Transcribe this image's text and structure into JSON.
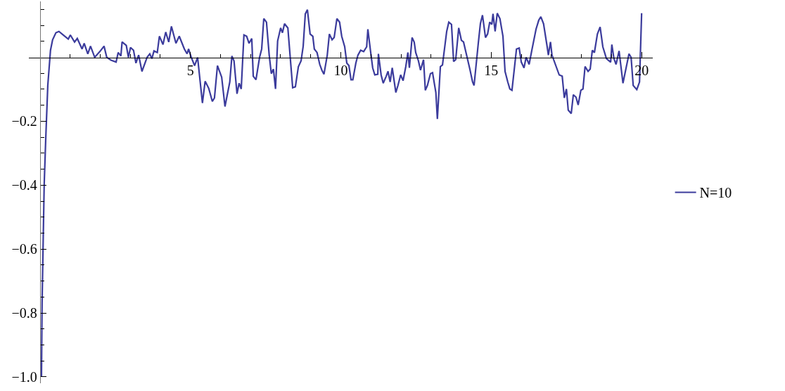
{
  "chart_data": {
    "type": "line",
    "legend": "right",
    "line_style": "solid",
    "marker": "none",
    "grid": false,
    "x": [
      0.05,
      0.07,
      0.14,
      0.19,
      0.26,
      0.35,
      0.42,
      0.53,
      0.63,
      0.77,
      0.94,
      1.01,
      1.15,
      1.24,
      1.4,
      1.47,
      1.59,
      1.68,
      1.82,
      1.99,
      2.13,
      2.22,
      2.36,
      2.53,
      2.6,
      2.69,
      2.73,
      2.87,
      2.94,
      3.01,
      3.11,
      3.19,
      3.28,
      3.39,
      3.56,
      3.65,
      3.72,
      3.79,
      3.9,
      3.97,
      4.09,
      4.18,
      4.28,
      4.37,
      4.52,
      4.63,
      4.8,
      4.89,
      4.94,
      5.03,
      5.14,
      5.24,
      5.4,
      5.49,
      5.61,
      5.73,
      5.8,
      5.9,
      6.04,
      6.15,
      6.31,
      6.38,
      6.45,
      6.55,
      6.62,
      6.69,
      6.78,
      6.87,
      6.95,
      7.04,
      7.09,
      7.18,
      7.3,
      7.37,
      7.44,
      7.53,
      7.62,
      7.69,
      7.76,
      7.83,
      7.9,
      8.0,
      8.06,
      8.13,
      8.24,
      8.4,
      8.49,
      8.59,
      8.68,
      8.75,
      8.82,
      8.89,
      8.98,
      9.07,
      9.12,
      9.21,
      9.3,
      9.37,
      9.44,
      9.55,
      9.62,
      9.71,
      9.78,
      9.87,
      9.96,
      10.03,
      10.13,
      10.2,
      10.27,
      10.34,
      10.4,
      10.5,
      10.57,
      10.66,
      10.76,
      10.86,
      10.9,
      10.99,
      11.06,
      11.13,
      11.23,
      11.25,
      11.34,
      11.41,
      11.51,
      11.57,
      11.64,
      11.71,
      11.83,
      11.9,
      11.99,
      12.07,
      12.16,
      12.23,
      12.28,
      12.37,
      12.44,
      12.49,
      12.58,
      12.65,
      12.75,
      12.81,
      12.88,
      12.98,
      13.05,
      13.16,
      13.21,
      13.31,
      13.38,
      13.52,
      13.59,
      13.68,
      13.75,
      13.82,
      13.92,
      14.01,
      14.08,
      14.29,
      14.38,
      14.43,
      14.57,
      14.64,
      14.71,
      14.81,
      14.88,
      14.95,
      15.02,
      15.06,
      15.13,
      15.2,
      15.29,
      15.39,
      15.46,
      15.55,
      15.62,
      15.69,
      15.84,
      15.93,
      16.0,
      16.09,
      16.16,
      16.26,
      16.35,
      16.49,
      16.58,
      16.65,
      16.74,
      16.86,
      16.9,
      16.97,
      17.02,
      17.26,
      17.36,
      17.43,
      17.5,
      17.56,
      17.66,
      17.73,
      17.82,
      17.89,
      17.98,
      18.05,
      18.12,
      18.22,
      18.29,
      18.36,
      18.43,
      18.53,
      18.62,
      18.71,
      18.83,
      18.97,
      19.01,
      19.08,
      19.15,
      19.25,
      19.38,
      19.58,
      19.65,
      19.72,
      19.84,
      19.93,
      20.0
    ],
    "series": [
      {
        "name": "N=10",
        "color": "#3b3b9c",
        "values": [
          -1.0,
          -0.77,
          -0.4,
          -0.26,
          -0.088,
          0.022,
          0.055,
          0.077,
          0.081,
          0.07,
          0.057,
          0.07,
          0.048,
          0.059,
          0.026,
          0.044,
          0.011,
          0.035,
          0,
          0.018,
          0.035,
          0,
          -0.009,
          -0.015,
          0.015,
          0.004,
          0.048,
          0.037,
          0,
          0.031,
          0.022,
          -0.018,
          0.007,
          -0.044,
          0,
          0.011,
          -0.004,
          0.02,
          0.015,
          0.066,
          0.04,
          0.079,
          0.048,
          0.097,
          0.044,
          0.066,
          0.026,
          0.011,
          0.026,
          0,
          -0.026,
          0,
          -0.143,
          -0.075,
          -0.097,
          -0.138,
          -0.127,
          -0.026,
          -0.062,
          -0.154,
          -0.077,
          0.004,
          -0.011,
          -0.114,
          -0.081,
          -0.099,
          0.07,
          0.066,
          0.044,
          0.059,
          -0.059,
          -0.07,
          0,
          0.026,
          0.121,
          0.11,
          0.007,
          -0.051,
          -0.037,
          -0.099,
          0.051,
          0.092,
          0.077,
          0.105,
          0.092,
          -0.095,
          -0.092,
          -0.029,
          -0.011,
          0.035,
          0.136,
          0.149,
          0.073,
          0.066,
          0.026,
          0.015,
          -0.022,
          -0.04,
          -0.053,
          0.007,
          0.073,
          0.055,
          0.062,
          0.121,
          0.11,
          0.066,
          0.033,
          -0.018,
          -0.026,
          -0.07,
          -0.07,
          -0.018,
          0.007,
          0.022,
          0.018,
          0.033,
          0.088,
          0.018,
          -0.033,
          -0.055,
          -0.053,
          0.011,
          -0.055,
          -0.081,
          -0.059,
          -0.044,
          -0.077,
          -0.033,
          -0.11,
          -0.088,
          -0.055,
          -0.073,
          -0.029,
          0.015,
          -0.033,
          0.062,
          0.048,
          0.015,
          -0.011,
          -0.04,
          -0.007,
          -0.103,
          -0.088,
          -0.051,
          -0.048,
          -0.11,
          -0.193,
          -0.029,
          -0.024,
          0.081,
          0.11,
          0.103,
          -0.013,
          -0.007,
          0.092,
          0.053,
          0.048,
          -0.037,
          -0.077,
          -0.088,
          0.044,
          0.105,
          0.132,
          0.062,
          0.073,
          0.11,
          0.103,
          0.136,
          0.081,
          0.138,
          0.121,
          0.066,
          -0.044,
          -0.077,
          -0.099,
          -0.103,
          0.026,
          0.029,
          -0.015,
          -0.033,
          0,
          -0.022,
          0.022,
          0.088,
          0.116,
          0.127,
          0.105,
          0.033,
          0.007,
          0.048,
          0.007,
          -0.055,
          -0.059,
          -0.127,
          -0.099,
          -0.165,
          -0.176,
          -0.117,
          -0.125,
          -0.149,
          -0.103,
          -0.099,
          -0.029,
          -0.044,
          -0.037,
          0.022,
          0.015,
          0.073,
          0.095,
          0.033,
          -0.004,
          -0.015,
          0.04,
          -0.004,
          -0.022,
          0.02,
          -0.081,
          0.011,
          0,
          -0.088,
          -0.101,
          -0.077,
          0.138
        ]
      }
    ],
    "xlim": [
      -0.37,
      20.37
    ],
    "ylim": [
      -1.02,
      0.175
    ],
    "xticks": [
      {
        "value": 1,
        "label": null
      },
      {
        "value": 2,
        "label": null
      },
      {
        "value": 3,
        "label": null
      },
      {
        "value": 4,
        "label": null
      },
      5,
      {
        "value": 6,
        "label": null
      },
      {
        "value": 7,
        "label": null
      },
      {
        "value": 8,
        "label": null
      },
      {
        "value": 9,
        "label": null
      },
      10,
      {
        "value": 11,
        "label": null
      },
      {
        "value": 12,
        "label": null
      },
      {
        "value": 13,
        "label": null
      },
      {
        "value": 14,
        "label": null
      },
      15,
      {
        "value": 16,
        "label": null
      },
      {
        "value": 17,
        "label": null
      },
      {
        "value": 18,
        "label": null
      },
      {
        "value": 19,
        "label": null
      },
      20
    ],
    "yticks": [
      {
        "value": -1.0,
        "label": "−1.0"
      },
      {
        "value": -0.95,
        "label": null
      },
      {
        "value": -0.9,
        "label": null
      },
      {
        "value": -0.85,
        "label": null
      },
      {
        "value": -0.8,
        "label": "−0.8"
      },
      {
        "value": -0.75,
        "label": null
      },
      {
        "value": -0.7,
        "label": null
      },
      {
        "value": -0.65,
        "label": null
      },
      {
        "value": -0.6,
        "label": "−0.6"
      },
      {
        "value": -0.55,
        "label": null
      },
      {
        "value": -0.5,
        "label": null
      },
      {
        "value": -0.45,
        "label": null
      },
      {
        "value": -0.4,
        "label": "−0.4"
      },
      {
        "value": -0.35,
        "label": null
      },
      {
        "value": -0.3,
        "label": null
      },
      {
        "value": -0.25,
        "label": null
      },
      {
        "value": -0.2,
        "label": "−0.2"
      },
      {
        "value": -0.15,
        "label": null
      },
      {
        "value": -0.1,
        "label": null
      },
      {
        "value": -0.05,
        "label": null
      },
      {
        "value": 0.05,
        "label": null
      },
      {
        "value": 0.1,
        "label": null
      },
      {
        "value": 0.15,
        "label": null
      }
    ]
  }
}
